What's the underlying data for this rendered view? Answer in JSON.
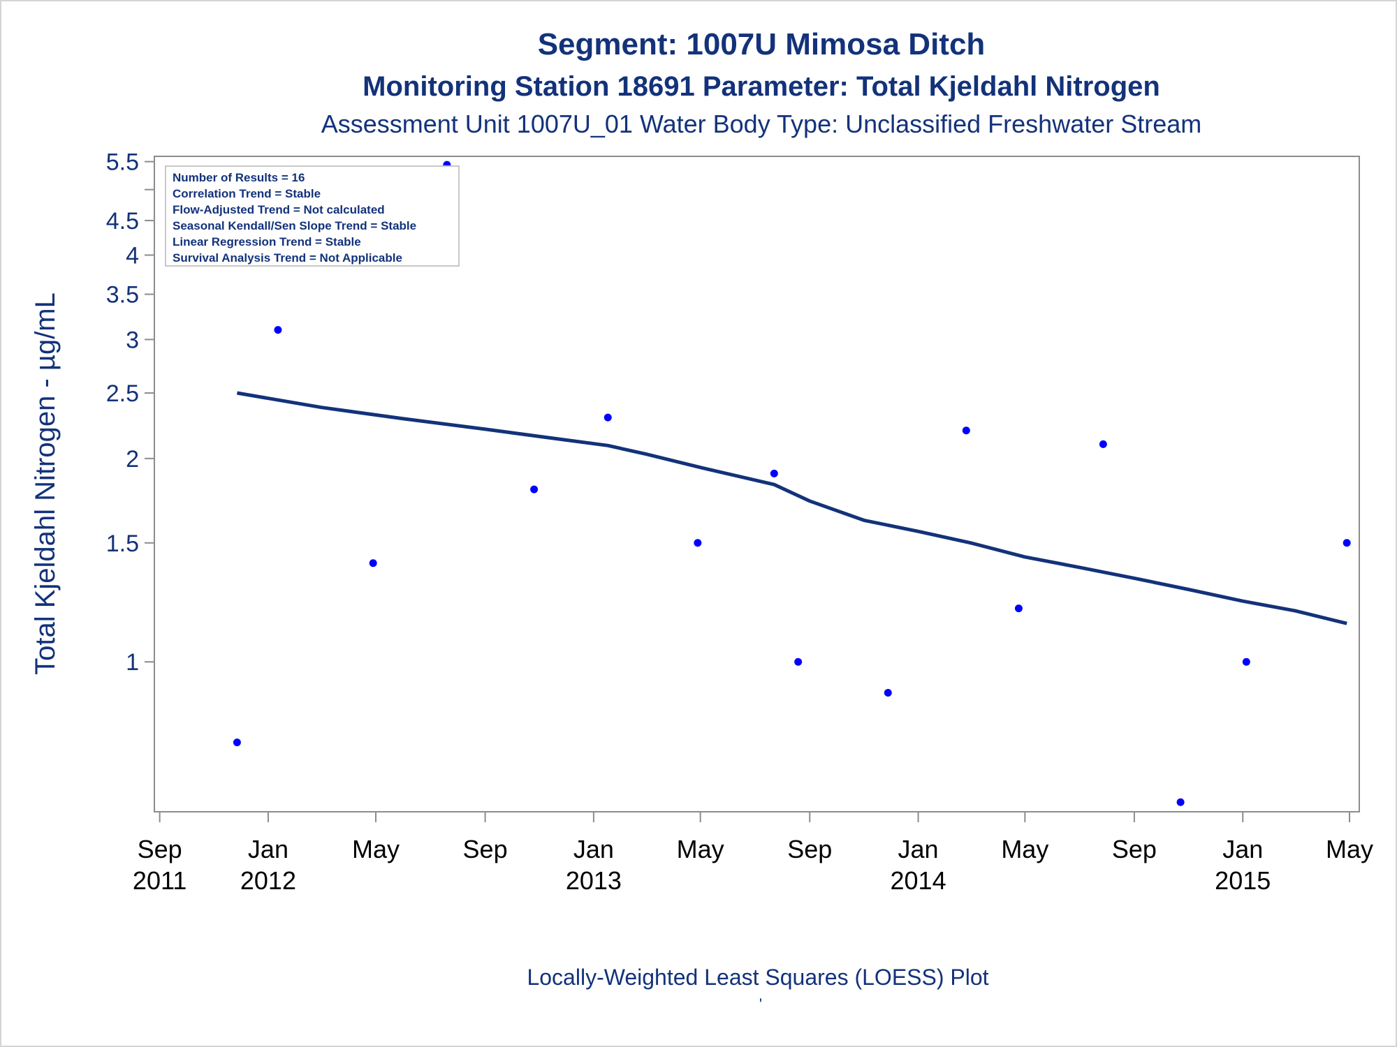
{
  "chart_data": {
    "type": "scatter",
    "title": "Segment: 1007U  Mimosa Ditch",
    "subtitle": "Monitoring Station 18691 Parameter: Total Kjeldahl Nitrogen",
    "subtitle2": "Assessment Unit 1007U_01   Water Body Type: Unclassified Freshwater Stream",
    "xlabel": "",
    "ylabel": "Total Kjeldahl Nitrogen -  µg/mL",
    "footnote": "Locally-Weighted Least Squares (LOESS) Plot",
    "footnote2": "'",
    "y_scale": "log",
    "ylim": [
      0.6,
      5.6
    ],
    "xlim": [
      "2011-08-26",
      "2015-05-12"
    ],
    "y_ticks": [
      {
        "value": 1,
        "label": "1"
      },
      {
        "value": 1.5,
        "label": "1.5"
      },
      {
        "value": 2,
        "label": "2"
      },
      {
        "value": 2.5,
        "label": "2.5"
      },
      {
        "value": 3,
        "label": "3"
      },
      {
        "value": 3.5,
        "label": "3.5"
      },
      {
        "value": 4,
        "label": "4"
      },
      {
        "value": 4.5,
        "label": "4.5"
      },
      {
        "value": 5,
        "label": ""
      },
      {
        "value": 5.5,
        "label": "5.5"
      }
    ],
    "x_ticks": [
      {
        "date": "2011-09-01",
        "line1": "Sep",
        "line2": "2011"
      },
      {
        "date": "2012-01-01",
        "line1": "Jan",
        "line2": "2012"
      },
      {
        "date": "2012-05-01",
        "line1": "May",
        "line2": ""
      },
      {
        "date": "2012-09-01",
        "line1": "Sep",
        "line2": ""
      },
      {
        "date": "2013-01-01",
        "line1": "Jan",
        "line2": "2013"
      },
      {
        "date": "2013-05-01",
        "line1": "May",
        "line2": ""
      },
      {
        "date": "2013-09-01",
        "line1": "Sep",
        "line2": ""
      },
      {
        "date": "2014-01-01",
        "line1": "Jan",
        "line2": "2014"
      },
      {
        "date": "2014-05-01",
        "line1": "May",
        "line2": ""
      },
      {
        "date": "2014-09-01",
        "line1": "Sep",
        "line2": ""
      },
      {
        "date": "2015-01-01",
        "line1": "Jan",
        "line2": "2015"
      },
      {
        "date": "2015-05-01",
        "line1": "May",
        "line2": ""
      }
    ],
    "series": [
      {
        "type": "scatter",
        "color": "#0000ff",
        "points": [
          {
            "x": "2011-11-27",
            "y": 0.76
          },
          {
            "x": "2012-01-12",
            "y": 3.1
          },
          {
            "x": "2012-04-28",
            "y": 1.4
          },
          {
            "x": "2012-07-20",
            "y": 5.44
          },
          {
            "x": "2012-10-26",
            "y": 1.8
          },
          {
            "x": "2013-01-17",
            "y": 2.3
          },
          {
            "x": "2013-04-28",
            "y": 1.5
          },
          {
            "x": "2013-07-23",
            "y": 1.9
          },
          {
            "x": "2013-08-19",
            "y": 1.0
          },
          {
            "x": "2013-11-28",
            "y": 0.9
          },
          {
            "x": "2014-02-24",
            "y": 2.2
          },
          {
            "x": "2014-04-24",
            "y": 1.2
          },
          {
            "x": "2014-07-28",
            "y": 2.1
          },
          {
            "x": "2014-10-23",
            "y": 0.62
          },
          {
            "x": "2015-01-05",
            "y": 1.0
          },
          {
            "x": "2015-04-28",
            "y": 1.5
          }
        ]
      },
      {
        "type": "line",
        "color": "#13327a",
        "points": [
          {
            "x": "2011-11-27",
            "y": 2.5
          },
          {
            "x": "2012-03-01",
            "y": 2.38
          },
          {
            "x": "2012-06-01",
            "y": 2.29
          },
          {
            "x": "2012-09-01",
            "y": 2.21
          },
          {
            "x": "2012-12-01",
            "y": 2.13
          },
          {
            "x": "2013-01-17",
            "y": 2.09
          },
          {
            "x": "2013-03-01",
            "y": 2.03
          },
          {
            "x": "2013-05-01",
            "y": 1.94
          },
          {
            "x": "2013-07-23",
            "y": 1.83
          },
          {
            "x": "2013-09-01",
            "y": 1.73
          },
          {
            "x": "2013-11-01",
            "y": 1.62
          },
          {
            "x": "2014-01-01",
            "y": 1.56
          },
          {
            "x": "2014-03-01",
            "y": 1.5
          },
          {
            "x": "2014-05-01",
            "y": 1.43
          },
          {
            "x": "2014-07-01",
            "y": 1.38
          },
          {
            "x": "2014-09-01",
            "y": 1.33
          },
          {
            "x": "2014-11-01",
            "y": 1.28
          },
          {
            "x": "2015-01-01",
            "y": 1.23
          },
          {
            "x": "2015-03-01",
            "y": 1.19
          },
          {
            "x": "2015-04-28",
            "y": 1.14
          }
        ]
      }
    ],
    "legend": {
      "placement": "top-left",
      "lines": [
        "Number of Results = 16",
        "Correlation Trend = Stable",
        "Flow-Adjusted Trend = Not calculated",
        "Seasonal Kendall/Sen Slope Trend = Stable",
        "Linear Regression Trend = Stable",
        "Survival Analysis Trend = Not Applicable"
      ]
    },
    "grid": false
  }
}
